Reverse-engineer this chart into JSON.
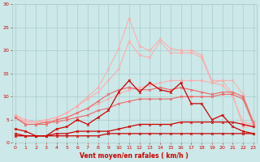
{
  "x": [
    0,
    1,
    2,
    3,
    4,
    5,
    6,
    7,
    8,
    9,
    10,
    11,
    12,
    13,
    14,
    15,
    16,
    17,
    18,
    19,
    20,
    21,
    22,
    23
  ],
  "line_highpeak_light": [
    6.0,
    5.0,
    4.5,
    5.0,
    5.5,
    6.5,
    8.0,
    10.0,
    12.0,
    16.0,
    20.5,
    27.0,
    21.0,
    20.0,
    22.5,
    20.5,
    20.0,
    20.0,
    19.0,
    13.5,
    13.5,
    10.5,
    3.5,
    3.5
  ],
  "line_mid_light": [
    6.0,
    4.5,
    4.5,
    5.0,
    5.5,
    6.5,
    8.0,
    9.5,
    11.0,
    13.5,
    16.0,
    22.0,
    19.0,
    18.5,
    22.0,
    19.5,
    19.5,
    19.5,
    18.5,
    13.0,
    12.5,
    10.0,
    4.5,
    4.0
  ],
  "line_lo_light": [
    5.5,
    4.5,
    4.5,
    4.5,
    5.0,
    5.5,
    6.5,
    7.5,
    8.5,
    9.5,
    10.5,
    11.5,
    12.0,
    12.5,
    13.0,
    13.5,
    13.5,
    13.5,
    13.5,
    13.0,
    13.5,
    13.5,
    10.5,
    4.5
  ],
  "line_hi_mid": [
    5.5,
    4.0,
    4.0,
    4.0,
    5.0,
    5.5,
    6.5,
    7.5,
    9.0,
    10.5,
    11.5,
    12.0,
    11.5,
    11.5,
    12.0,
    11.5,
    12.0,
    11.5,
    11.0,
    10.5,
    11.0,
    11.0,
    10.0,
    4.5
  ],
  "line_lo_mid": [
    5.5,
    4.0,
    4.0,
    4.5,
    4.5,
    5.0,
    5.5,
    6.0,
    7.0,
    7.5,
    8.5,
    9.0,
    9.5,
    9.5,
    9.5,
    9.5,
    10.0,
    10.0,
    10.0,
    10.0,
    10.5,
    10.5,
    9.5,
    4.0
  ],
  "line_peak_dark": [
    3.0,
    2.5,
    1.5,
    1.5,
    3.0,
    3.5,
    5.0,
    4.0,
    5.5,
    7.0,
    11.0,
    13.5,
    11.0,
    13.0,
    11.5,
    11.0,
    13.0,
    8.5,
    8.5,
    5.0,
    6.0,
    3.5,
    2.5,
    2.0
  ],
  "line_low_dark": [
    2.0,
    1.5,
    1.5,
    1.5,
    2.0,
    2.0,
    2.5,
    2.5,
    2.5,
    2.5,
    3.0,
    3.5,
    4.0,
    4.0,
    4.0,
    4.0,
    4.5,
    4.5,
    4.5,
    4.5,
    4.5,
    4.5,
    4.0,
    3.5
  ],
  "line_flat_dark": [
    1.5,
    1.5,
    1.5,
    1.5,
    1.5,
    1.5,
    1.5,
    1.5,
    1.5,
    2.0,
    2.0,
    2.0,
    2.0,
    2.0,
    2.0,
    2.0,
    2.0,
    2.0,
    2.0,
    2.0,
    2.0,
    2.0,
    2.0,
    2.0
  ],
  "background_color": "#cce8e8",
  "grid_color": "#aacccc",
  "line_color_dark": "#cc0000",
  "line_color_mid": "#ee6666",
  "line_color_light": "#ffaaaa",
  "xlabel": "Vent moyen/en rafales ( km/h )",
  "xlabel_color": "#cc0000",
  "tick_color": "#cc0000",
  "ylim": [
    0,
    30
  ],
  "xlim": [
    0,
    23
  ],
  "yticks": [
    0,
    5,
    10,
    15,
    20,
    25,
    30
  ]
}
